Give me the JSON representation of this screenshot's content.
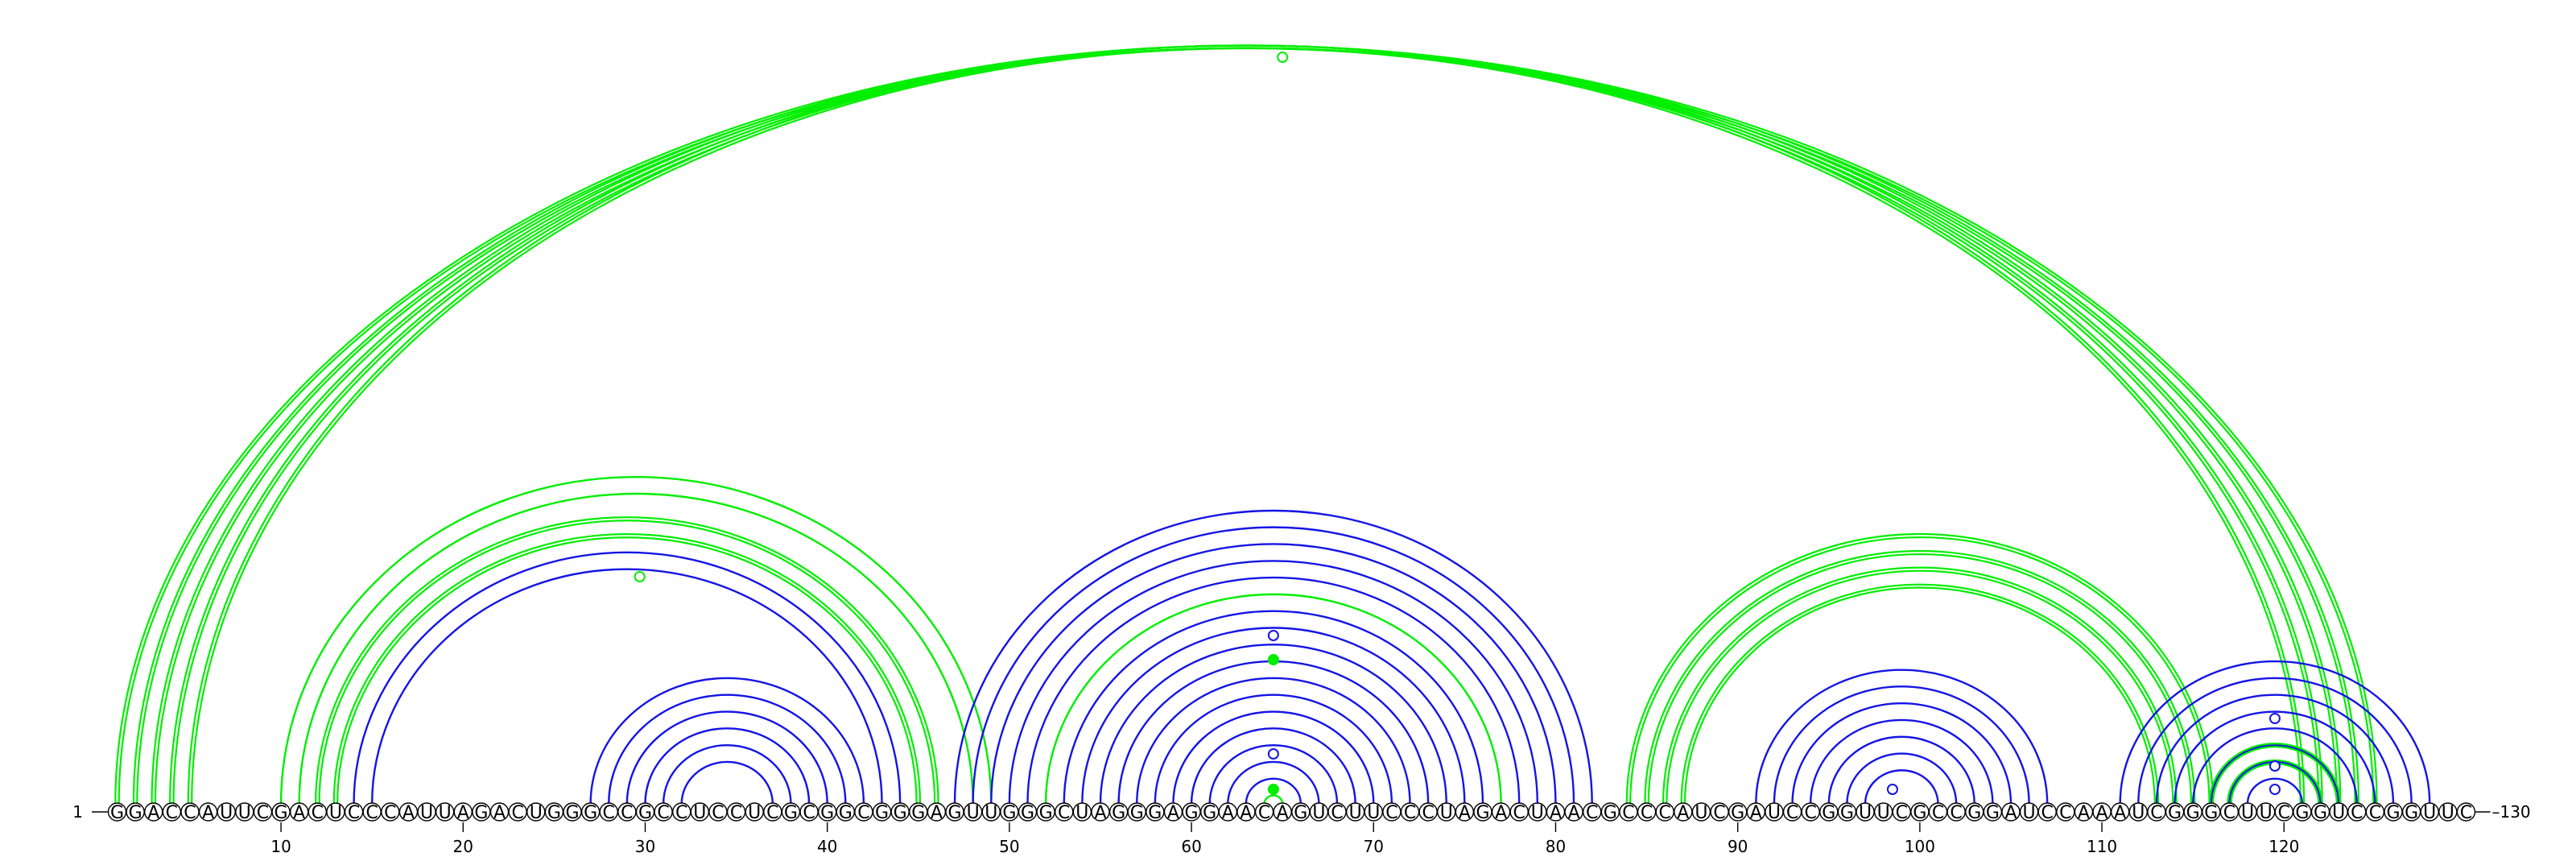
{
  "sequence": "GGACCAUUCGACUCCCAUUAGACUGGGCCGCCUCCUCGCGGCGGGAGUUGGGCUAGGGAGGAACAGUCUUCCCUAGACUAACGCCCAUCGAUCCGGUUCGCCGGAUCCAAAUCGGGCUUCGGUCCGGUUC",
  "axis": {
    "start_label": "1",
    "end_label": "130",
    "ticks": [
      10,
      20,
      30,
      40,
      50,
      60,
      70,
      80,
      90,
      100,
      110,
      120
    ]
  },
  "colors": {
    "green": "#00ee00",
    "blue": "#1414e6"
  },
  "arc_groups": [
    {
      "color": "green",
      "double": true,
      "pairs": [
        [
          1,
          125
        ],
        [
          2,
          124
        ],
        [
          3,
          123
        ],
        [
          4,
          122
        ],
        [
          5,
          121
        ]
      ]
    },
    {
      "color": "green",
      "double": true,
      "pairs": [
        [
          12,
          46
        ],
        [
          13,
          45
        ]
      ]
    },
    {
      "color": "green",
      "double": false,
      "pairs": [
        [
          10,
          49
        ],
        [
          11,
          48
        ]
      ]
    },
    {
      "color": "blue",
      "double": false,
      "pairs": [
        [
          14,
          44
        ],
        [
          15,
          43
        ]
      ]
    },
    {
      "color": "blue",
      "double": false,
      "pairs": [
        [
          27,
          42
        ],
        [
          28,
          41
        ],
        [
          29,
          40
        ],
        [
          30,
          39
        ],
        [
          31,
          38
        ],
        [
          32,
          37
        ]
      ]
    },
    {
      "color": "blue",
      "double": false,
      "pairs": [
        [
          47,
          82
        ],
        [
          48,
          81
        ],
        [
          49,
          80
        ],
        [
          50,
          79
        ],
        [
          51,
          78
        ],
        [
          53,
          76
        ],
        [
          54,
          75
        ],
        [
          55,
          74
        ],
        [
          56,
          73
        ],
        [
          57,
          72
        ],
        [
          58,
          71
        ],
        [
          59,
          70
        ],
        [
          60,
          69
        ],
        [
          61,
          68
        ],
        [
          62,
          67
        ],
        [
          63,
          66
        ]
      ]
    },
    {
      "color": "green",
      "double": false,
      "pairs": [
        [
          52,
          77
        ],
        [
          64,
          65
        ]
      ]
    },
    {
      "color": "green",
      "double": true,
      "pairs": [
        [
          84,
          116
        ],
        [
          85,
          115
        ],
        [
          86,
          114
        ],
        [
          87,
          113
        ]
      ]
    },
    {
      "color": "blue",
      "double": false,
      "pairs": [
        [
          91,
          107
        ],
        [
          92,
          106
        ],
        [
          93,
          105
        ],
        [
          94,
          104
        ],
        [
          95,
          103
        ],
        [
          96,
          102
        ],
        [
          97,
          101
        ]
      ]
    },
    {
      "color": "blue",
      "double": false,
      "pairs": [
        [
          111,
          128
        ],
        [
          112,
          127
        ],
        [
          113,
          126
        ],
        [
          114,
          125
        ],
        [
          115,
          124
        ],
        [
          116,
          123
        ],
        [
          117,
          122
        ],
        [
          118,
          121
        ]
      ]
    },
    {
      "color": "green",
      "double": true,
      "pairs": [
        [
          116,
          123
        ],
        [
          117,
          122
        ]
      ]
    }
  ],
  "markers": [
    {
      "color": "green",
      "pos": 65,
      "fill": false,
      "level": 0.98
    },
    {
      "color": "green",
      "pos": 29.5,
      "fill": false,
      "level": 0.95
    },
    {
      "color": "blue",
      "pos": 64.5,
      "fill": false,
      "level": 0.82
    },
    {
      "color": "green",
      "pos": 64.5,
      "fill": true,
      "level": 0.69
    },
    {
      "color": "blue",
      "pos": 64.5,
      "fill": false,
      "level": 0.4
    },
    {
      "color": "green",
      "pos": 64.5,
      "fill": true,
      "level": 0.9
    },
    {
      "color": "blue",
      "pos": 98.5,
      "fill": false,
      "level": 0.9
    },
    {
      "color": "blue",
      "pos": 119.5,
      "fill": false,
      "level": 0.98
    },
    {
      "color": "blue",
      "pos": 119.5,
      "fill": false,
      "level": 0.5
    },
    {
      "color": "blue",
      "pos": 119.5,
      "fill": false,
      "level": 0.5
    }
  ]
}
